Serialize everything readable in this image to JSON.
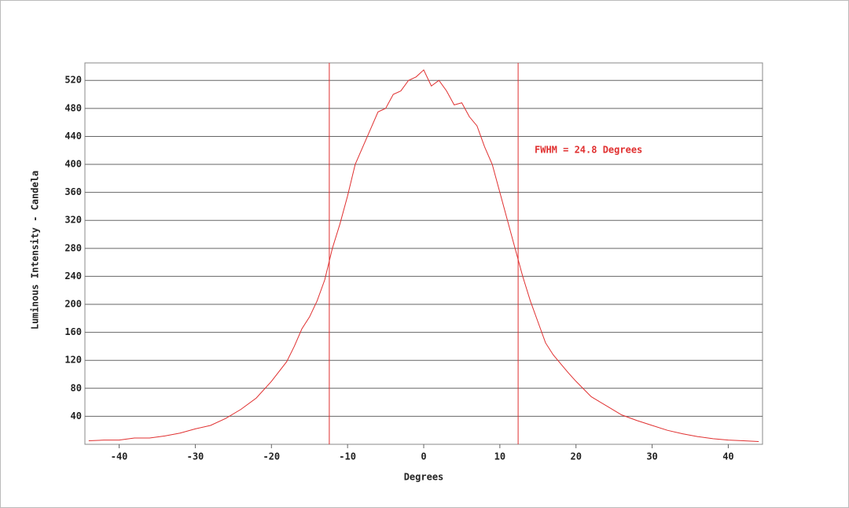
{
  "chart_data": {
    "type": "line",
    "xlabel": "Degrees",
    "ylabel": "Luminous Intensity - Candela",
    "annotation": "FWHM = 24.8 Degrees",
    "x": [
      -44,
      -42,
      -40,
      -38,
      -36,
      -34,
      -32,
      -30,
      -28,
      -26,
      -24,
      -22,
      -20,
      -18,
      -17,
      -16,
      -15,
      -14,
      -13,
      -12,
      -11,
      -10,
      -9,
      -8,
      -7,
      -6,
      -5,
      -4,
      -3,
      -2,
      -1,
      0,
      1,
      2,
      3,
      4,
      5,
      6,
      7,
      8,
      9,
      10,
      11,
      12,
      13,
      14,
      15,
      16,
      17,
      18,
      19,
      20,
      22,
      24,
      26,
      28,
      30,
      32,
      34,
      36,
      38,
      40,
      42,
      44
    ],
    "series": [
      {
        "color": "#e03030",
        "values": [
          5,
          6,
          6,
          9,
          9,
          12,
          16,
          22,
          27,
          37,
          50,
          66,
          90,
          118,
          140,
          165,
          182,
          205,
          235,
          280,
          315,
          355,
          400,
          425,
          450,
          475,
          480,
          500,
          505,
          520,
          525,
          535,
          512,
          520,
          505,
          485,
          488,
          468,
          455,
          425,
          400,
          360,
          320,
          280,
          240,
          205,
          175,
          145,
          128,
          115,
          102,
          90,
          68,
          55,
          42,
          34,
          27,
          20,
          15,
          11,
          8,
          6,
          5,
          4
        ]
      }
    ],
    "vlines": [
      -12.4,
      12.4
    ],
    "xlim": [
      -44.5,
      44.5
    ],
    "ylim": [
      0,
      545
    ],
    "xticks": [
      -40,
      -30,
      -20,
      -10,
      0,
      10,
      20,
      30,
      40
    ],
    "yticks": [
      40,
      80,
      120,
      160,
      200,
      240,
      280,
      320,
      360,
      400,
      440,
      480,
      520
    ],
    "grid": true
  }
}
